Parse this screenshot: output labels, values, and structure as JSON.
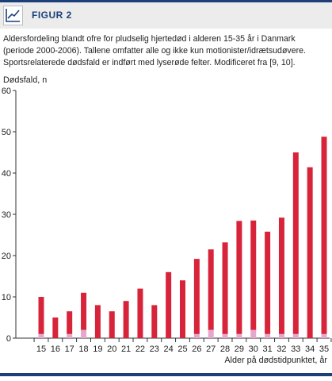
{
  "figure": {
    "label": "FIGUR 2",
    "icon": "line-chart-icon",
    "caption": "Aldersfordeling blandt ofre for pludselig hjertedød i alderen 15-35 år i Danmark (periode 2000-2006). Tallene omfatter alle og ikke kun motionister/idrætsudøvere. Sportsrelaterede dødsfald er indført med lyserøde felter. Modificeret fra [9, 10]."
  },
  "colors": {
    "bar": "#d8243a",
    "sport": "#e7a6cc",
    "axis": "#333333",
    "accent": "#1c3f7a"
  },
  "chart_data": {
    "type": "bar",
    "stacked": true,
    "categories": [
      "15",
      "16",
      "17",
      "18",
      "19",
      "20",
      "21",
      "22",
      "23",
      "24",
      "25",
      "26",
      "27",
      "28",
      "29",
      "30",
      "31",
      "32",
      "33",
      "34",
      "35"
    ],
    "series": [
      {
        "name": "",
        "color": "#e7a6cc",
        "values": [
          1,
          0,
          1,
          2,
          0,
          0,
          0,
          0,
          0,
          0,
          0,
          1,
          2,
          1,
          1,
          2,
          1,
          1,
          1,
          0,
          1
        ]
      },
      {
        "name": "",
        "color": "#d8243a",
        "values": [
          9,
          5,
          5.5,
          9,
          8,
          6.5,
          9,
          12,
          8,
          16,
          14,
          18.2,
          19.5,
          22.2,
          27.4,
          26.5,
          24.8,
          28.2,
          44,
          41.4,
          47.8
        ]
      }
    ],
    "totals": [
      10,
      5,
      6.5,
      11,
      8,
      6.5,
      9,
      12,
      8,
      16,
      14,
      19.2,
      21.5,
      23.2,
      28.4,
      28.5,
      25.8,
      29.2,
      45,
      41.4,
      48.8
    ],
    "ylim": [
      0,
      60
    ],
    "yticks": [
      0,
      10,
      20,
      30,
      40,
      50,
      60
    ],
    "ylabel": "Dødsfald, n",
    "xlabel": "Alder på dødstidpunktet, år",
    "grid": false,
    "legend": "none"
  }
}
